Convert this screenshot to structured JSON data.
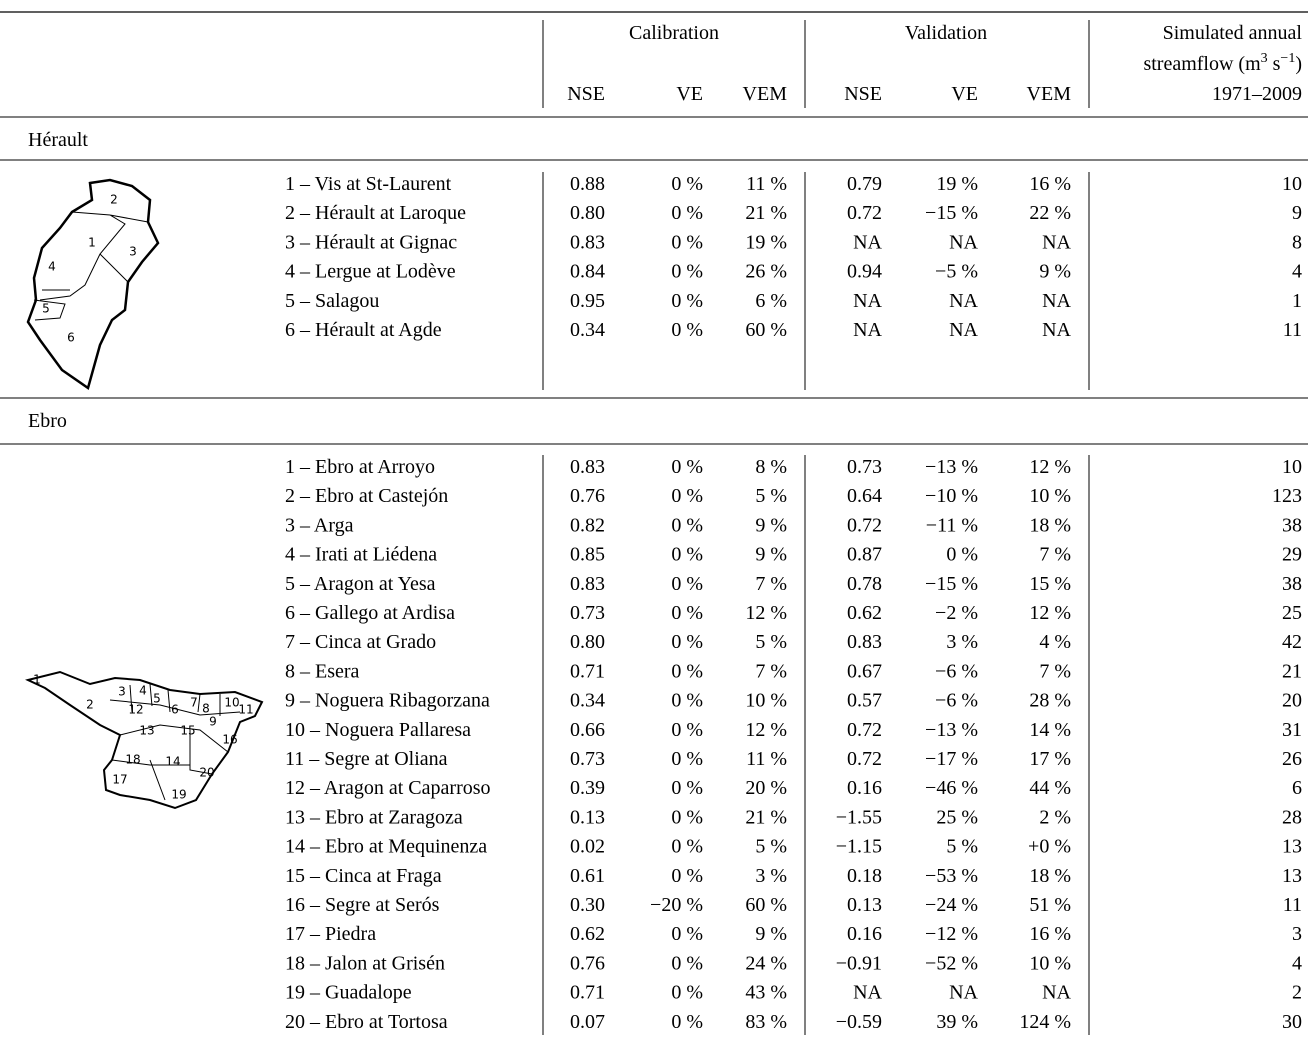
{
  "header": {
    "calibration": "Calibration",
    "validation": "Validation",
    "metrics": [
      "NSE",
      "VE",
      "VEM"
    ],
    "flow": [
      "Simulated annual",
      "streamflow (m",
      "3",
      " s",
      "−1",
      ")",
      "1971–2009"
    ]
  },
  "sections": [
    {
      "name": "Hérault",
      "map_labels": [
        "1",
        "2",
        "3",
        "4",
        "5",
        "6"
      ],
      "rows": [
        [
          "1 – Vis at St-Laurent",
          "0.88",
          "0 %",
          "11 %",
          "0.79",
          "19 %",
          "16 %",
          "10"
        ],
        [
          "2 – Hérault at Laroque",
          "0.80",
          "0 %",
          "21 %",
          "0.72",
          "−15 %",
          "22 %",
          "9"
        ],
        [
          "3 – Hérault at Gignac",
          "0.83",
          "0 %",
          "19 %",
          "NA",
          "NA",
          "NA",
          "8"
        ],
        [
          "4 – Lergue at Lodève",
          "0.84",
          "0 %",
          "26 %",
          "0.94",
          "−5 %",
          "9 %",
          "4"
        ],
        [
          "5 – Salagou",
          "0.95",
          "0 %",
          "6 %",
          "NA",
          "NA",
          "NA",
          "1"
        ],
        [
          "6 – Hérault at Agde",
          "0.34",
          "0 %",
          "60 %",
          "NA",
          "NA",
          "NA",
          "11"
        ]
      ]
    },
    {
      "name": "Ebro",
      "map_labels": [
        "1",
        "2",
        "3",
        "4",
        "5",
        "6",
        "7",
        "8",
        "9",
        "10",
        "11",
        "12",
        "13",
        "14",
        "15",
        "16",
        "17",
        "18",
        "19",
        "20"
      ],
      "rows": [
        [
          "1 – Ebro at Arroyo",
          "0.83",
          "0 %",
          "8 %",
          "0.73",
          "−13 %",
          "12 %",
          "10"
        ],
        [
          "2 – Ebro at Castejón",
          "0.76",
          "0 %",
          "5 %",
          "0.64",
          "−10 %",
          "10 %",
          "123"
        ],
        [
          "3 – Arga",
          "0.82",
          "0 %",
          "9 %",
          "0.72",
          "−11 %",
          "18 %",
          "38"
        ],
        [
          "4 – Irati at Liédena",
          "0.85",
          "0 %",
          "9 %",
          "0.87",
          "0 %",
          "7 %",
          "29"
        ],
        [
          "5 – Aragon at Yesa",
          "0.83",
          "0 %",
          "7 %",
          "0.78",
          "−15 %",
          "15 %",
          "38"
        ],
        [
          "6 – Gallego at Ardisa",
          "0.73",
          "0 %",
          "12 %",
          "0.62",
          "−2 %",
          "12 %",
          "25"
        ],
        [
          "7 – Cinca at Grado",
          "0.80",
          "0 %",
          "5 %",
          "0.83",
          "3 %",
          "4 %",
          "42"
        ],
        [
          "8 – Esera",
          "0.71",
          "0 %",
          "7 %",
          "0.67",
          "−6 %",
          "7 %",
          "21"
        ],
        [
          "9 – Noguera Ribagorzana",
          "0.34",
          "0 %",
          "10 %",
          "0.57",
          "−6 %",
          "28 %",
          "20"
        ],
        [
          "10 – Noguera Pallaresa",
          "0.66",
          "0 %",
          "12 %",
          "0.72",
          "−13 %",
          "14 %",
          "31"
        ],
        [
          "11 – Segre at Oliana",
          "0.73",
          "0 %",
          "11 %",
          "0.72",
          "−17 %",
          "17 %",
          "26"
        ],
        [
          "12 – Aragon at Caparroso",
          "0.39",
          "0 %",
          "20 %",
          "0.16",
          "−46 %",
          "44 %",
          "6"
        ],
        [
          "13 – Ebro at Zaragoza",
          "0.13",
          "0 %",
          "21 %",
          "−1.55",
          "25 %",
          "2 %",
          "28"
        ],
        [
          "14 – Ebro at Mequinenza",
          "0.02",
          "0 %",
          "5 %",
          "−1.15",
          "5 %",
          "+0 %",
          "13"
        ],
        [
          "15 – Cinca at Fraga",
          "0.61",
          "0 %",
          "3 %",
          "0.18",
          "−53 %",
          "18 %",
          "13"
        ],
        [
          "16 – Segre at Serós",
          "0.30",
          "−20 %",
          "60 %",
          "0.13",
          "−24 %",
          "51 %",
          "11"
        ],
        [
          "17 – Piedra",
          "0.62",
          "0 %",
          "9 %",
          "0.16",
          "−12 %",
          "16 %",
          "3"
        ],
        [
          "18 – Jalon at Grisén",
          "0.76",
          "0 %",
          "24 %",
          "−0.91",
          "−52 %",
          "10 %",
          "4"
        ],
        [
          "19 – Guadalope",
          "0.71",
          "0 %",
          "43 %",
          "NA",
          "NA",
          "NA",
          "2"
        ],
        [
          "20 – Ebro at Tortosa",
          "0.07",
          "0 %",
          "83 %",
          "−0.59",
          "39 %",
          "124 %",
          "30"
        ]
      ]
    }
  ]
}
